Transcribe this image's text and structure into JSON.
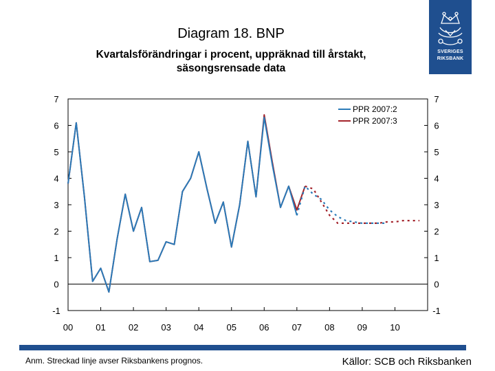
{
  "title": "Diagram 18. BNP",
  "subtitle_line1": "Kvartalsförändringar i procent, uppräknad till årstakt,",
  "subtitle_line2": "säsongsrensade data",
  "logo": {
    "line1": "SVERIGES",
    "line2": "RIKSBANK"
  },
  "note": "Anm. Streckad linje avser Riksbankens prognos.",
  "source": "Källor: SCB och Riksbanken",
  "colors": {
    "blue": "#2a7ab8",
    "red": "#a3232b",
    "brand": "#1f4f8f"
  },
  "chart_data": {
    "type": "line",
    "title": "Diagram 18. BNP",
    "xlabel": "",
    "ylabel": "",
    "ylim": [
      -1,
      7
    ],
    "yticks": [
      "-1",
      "0",
      "1",
      "2",
      "3",
      "4",
      "5",
      "6",
      "7"
    ],
    "xticks": [
      "00",
      "01",
      "02",
      "03",
      "04",
      "05",
      "06",
      "07",
      "08",
      "09",
      "10"
    ],
    "x_range": [
      2000.0,
      2011.0
    ],
    "legend_position": "top-right",
    "series": [
      {
        "name": "PPR 2007:2",
        "color": "#2a7ab8",
        "outcome": {
          "x": [
            2000.0,
            2000.25,
            2000.5,
            2000.75,
            2001.0,
            2001.25,
            2001.5,
            2001.75,
            2002.0,
            2002.25,
            2002.5,
            2002.75,
            2003.0,
            2003.25,
            2003.5,
            2003.75,
            2004.0,
            2004.25,
            2004.5,
            2004.75,
            2005.0,
            2005.25,
            2005.5,
            2005.75,
            2006.0,
            2006.25,
            2006.5,
            2006.75,
            2007.0
          ],
          "y": [
            3.8,
            6.1,
            3.3,
            0.1,
            0.6,
            -0.3,
            1.7,
            3.4,
            2.0,
            2.9,
            0.85,
            0.9,
            1.6,
            1.5,
            3.5,
            4.0,
            5.0,
            3.6,
            2.3,
            3.1,
            1.4,
            3.0,
            5.4,
            3.3,
            6.3,
            4.5,
            2.9,
            3.7,
            2.6
          ]
        },
        "forecast": {
          "x": [
            2007.0,
            2007.25,
            2007.5,
            2007.75,
            2008.0,
            2008.25,
            2008.5,
            2008.75,
            2009.0,
            2009.25,
            2009.5,
            2009.75
          ],
          "y": [
            2.6,
            3.7,
            3.4,
            3.2,
            2.8,
            2.55,
            2.4,
            2.35,
            2.3,
            2.3,
            2.3,
            2.3
          ]
        }
      },
      {
        "name": "PPR 2007:3",
        "color": "#a3232b",
        "outcome": {
          "x": [
            2000.0,
            2000.25,
            2000.5,
            2000.75,
            2001.0,
            2001.25,
            2001.5,
            2001.75,
            2002.0,
            2002.25,
            2002.5,
            2002.75,
            2003.0,
            2003.25,
            2003.5,
            2003.75,
            2004.0,
            2004.25,
            2004.5,
            2004.75,
            2005.0,
            2005.25,
            2005.5,
            2005.75,
            2006.0,
            2006.25,
            2006.5,
            2006.75,
            2007.0,
            2007.25
          ],
          "y": [
            3.8,
            6.1,
            3.3,
            0.1,
            0.6,
            -0.3,
            1.7,
            3.4,
            2.0,
            2.9,
            0.85,
            0.9,
            1.6,
            1.5,
            3.5,
            4.0,
            5.0,
            3.6,
            2.3,
            3.1,
            1.4,
            3.0,
            5.4,
            3.3,
            6.4,
            4.6,
            2.9,
            3.7,
            2.8,
            3.7
          ]
        },
        "forecast": {
          "x": [
            2007.25,
            2007.5,
            2007.75,
            2008.0,
            2008.25,
            2008.5,
            2008.75,
            2009.0,
            2009.25,
            2009.5,
            2009.75,
            2010.0,
            2010.25,
            2010.5,
            2010.75
          ],
          "y": [
            3.7,
            3.6,
            3.1,
            2.6,
            2.3,
            2.3,
            2.3,
            2.3,
            2.3,
            2.3,
            2.35,
            2.35,
            2.4,
            2.4,
            2.4
          ]
        }
      }
    ]
  }
}
